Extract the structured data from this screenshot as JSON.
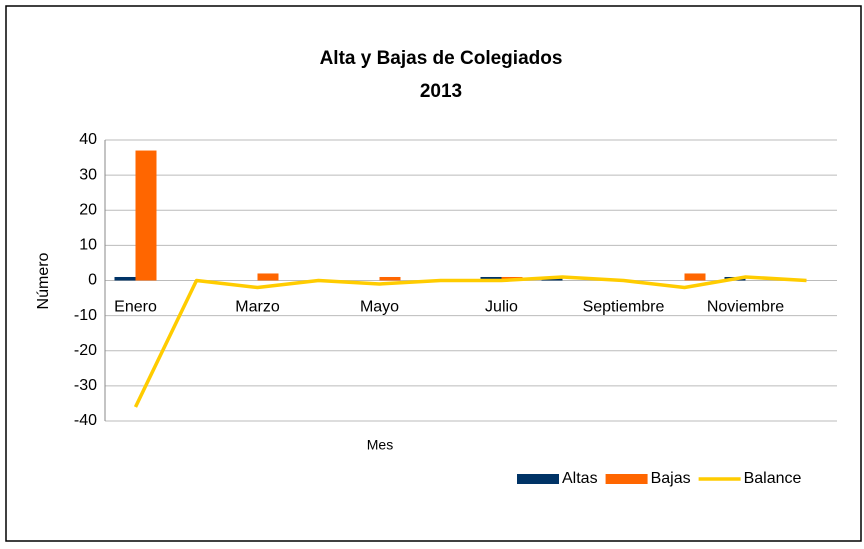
{
  "chart_data": {
    "type": "bar-line",
    "title": "Alta y Bajas de Colegiados",
    "subtitle": "2013",
    "x_label": "Mes",
    "y_label": "Número",
    "categories": [
      "Enero",
      null,
      "Marzo",
      null,
      "Mayo",
      null,
      "Julio",
      null,
      "Septiembre",
      null,
      "Noviembre",
      null
    ],
    "series": [
      {
        "name": "Altas",
        "color": "#003366",
        "kind": "bar",
        "values": [
          1,
          0,
          0,
          0,
          0,
          0,
          1,
          1,
          0,
          0,
          1,
          0
        ]
      },
      {
        "name": "Bajas",
        "color": "#ff6600",
        "kind": "bar",
        "values": [
          37,
          0,
          2,
          0,
          1,
          0,
          1,
          0,
          0,
          2,
          0,
          0
        ]
      },
      {
        "name": "Balance",
        "color": "#ffcc00",
        "kind": "line",
        "values": [
          -36,
          0,
          -2,
          0,
          -1,
          0,
          0,
          1,
          0,
          -2,
          1,
          0
        ]
      }
    ],
    "ylim": [
      -40,
      40
    ],
    "yticks": [
      -40,
      -30,
      -20,
      -10,
      0,
      10,
      20,
      30,
      40
    ],
    "grid": true,
    "legend": "bottom-right"
  }
}
